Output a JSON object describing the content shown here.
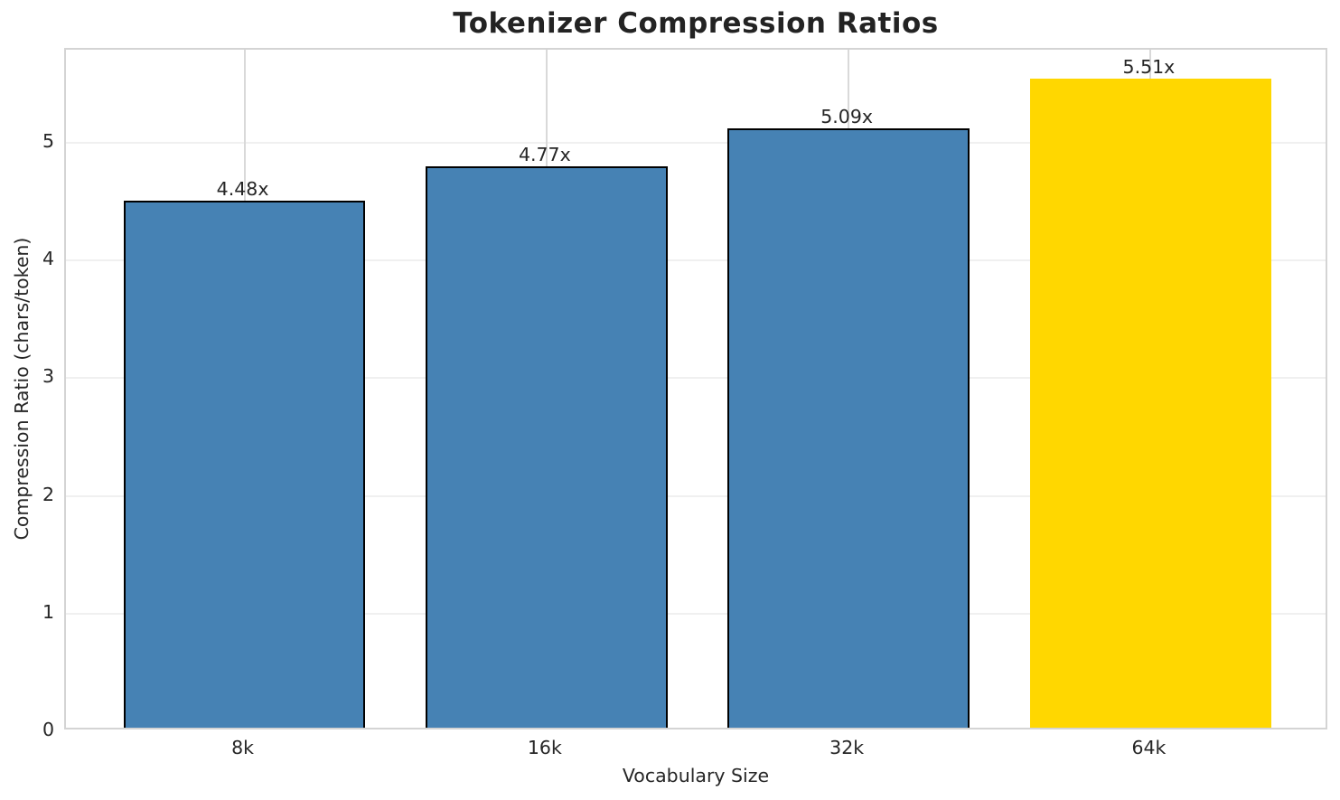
{
  "chart_data": {
    "type": "bar",
    "title": "Tokenizer Compression Ratios",
    "xlabel": "Vocabulary Size",
    "ylabel": "Compression Ratio (chars/token)",
    "categories": [
      "8k",
      "16k",
      "32k",
      "64k"
    ],
    "values": [
      4.48,
      4.77,
      5.09,
      5.51
    ],
    "bar_labels": [
      "4.48x",
      "4.77x",
      "5.09x",
      "5.51x"
    ],
    "yticks": [
      "0",
      "1",
      "2",
      "3",
      "4",
      "5"
    ],
    "ytick_values": [
      0,
      1,
      2,
      3,
      4,
      5
    ],
    "ylim": [
      0,
      5.79
    ],
    "grid": true,
    "legend": null,
    "colors": {
      "bar_default": "#4682B4",
      "bar_highlight": "#FFD700",
      "bar_edge": "#000000",
      "grid_horizontal": "#f0f0f0",
      "grid_vertical": "#d9d9d9",
      "spine": "#d4d4d4",
      "text": "#262626"
    },
    "bar_colors": [
      "#4682B4",
      "#4682B4",
      "#4682B4",
      "#FFD700"
    ],
    "bar_has_edge": [
      true,
      true,
      true,
      false
    ],
    "highlighted_index": 3
  }
}
